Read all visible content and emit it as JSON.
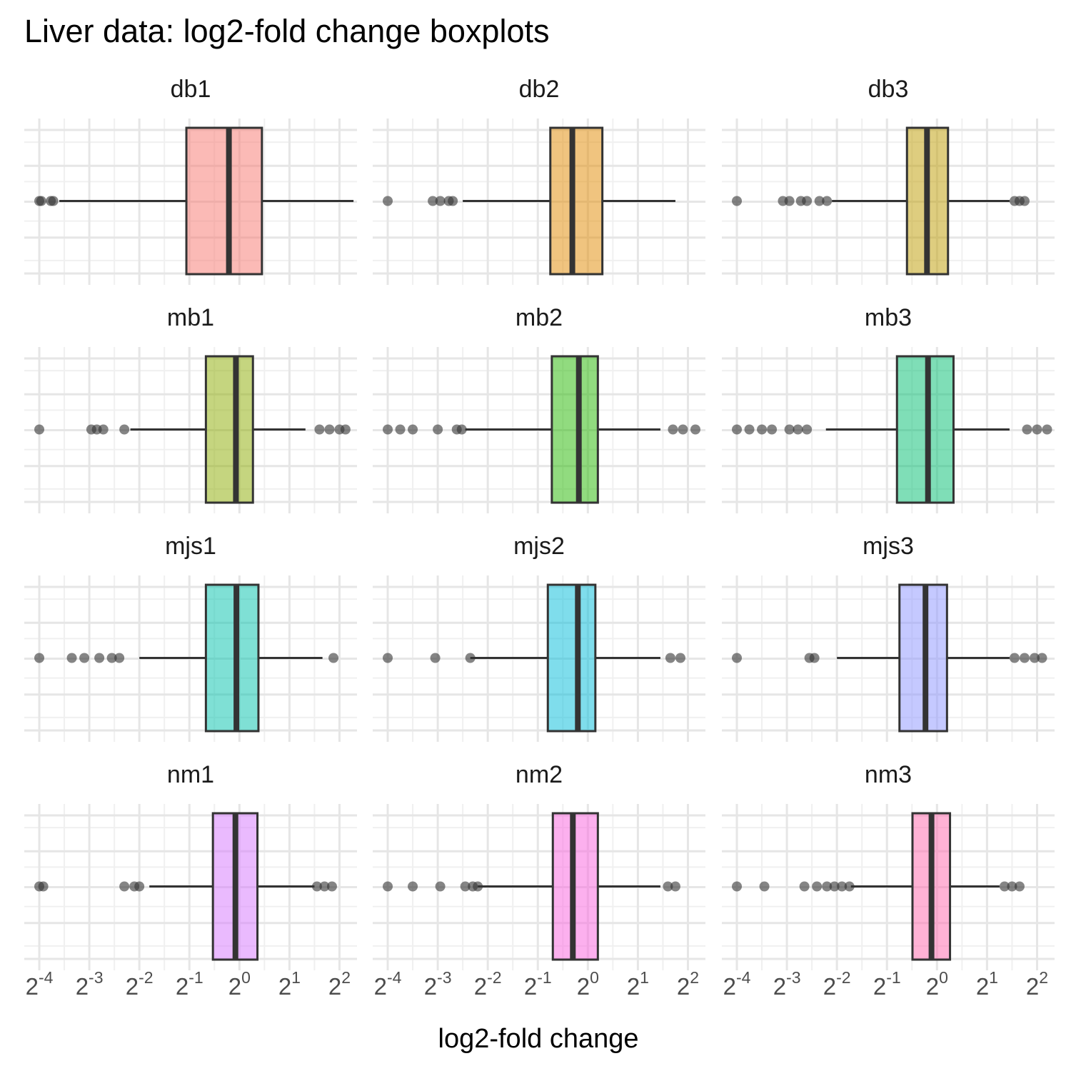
{
  "chart_data": {
    "type": "boxplot",
    "title": "Liver data: log2-fold change boxplots",
    "xlabel": "log2-fold change",
    "ylabel": "",
    "x_scale": "log2",
    "x_tick_base": "2",
    "x_tick_exponents": [
      "-4",
      "-3",
      "-2",
      "-1",
      "0",
      "1",
      "2"
    ],
    "xlim_log2": [
      -4.3,
      2.35
    ],
    "grid": true,
    "legend": "none",
    "layout": {
      "rows": 4,
      "cols": 3
    },
    "panels": [
      {
        "name": "db1",
        "color": "#F8766D",
        "whisker_low": -3.6,
        "q1": -1.06,
        "median": -0.21,
        "q3": 0.45,
        "whisker_high": 2.28,
        "outliers_low": [
          -4.0,
          -3.96,
          -3.77,
          -3.72
        ],
        "outliers_high": []
      },
      {
        "name": "db2",
        "color": "#E18A00",
        "whisker_low": -2.5,
        "q1": -0.75,
        "median": -0.31,
        "q3": 0.29,
        "whisker_high": 1.75,
        "outliers_low": [
          -4.0,
          -3.1,
          -2.95,
          -2.78,
          -2.7
        ],
        "outliers_high": []
      },
      {
        "name": "db3",
        "color": "#BE9C00",
        "whisker_low": -2.1,
        "q1": -0.6,
        "median": -0.2,
        "q3": 0.22,
        "whisker_high": 1.45,
        "outliers_low": [
          -4.0,
          -3.08,
          -2.95,
          -2.72,
          -2.6,
          -2.35,
          -2.2
        ],
        "outliers_high": [
          1.55,
          1.65,
          1.75
        ]
      },
      {
        "name": "mb1",
        "color": "#8CAB00",
        "whisker_low": -2.18,
        "q1": -0.67,
        "median": -0.07,
        "q3": 0.27,
        "whisker_high": 1.32,
        "outliers_low": [
          -4.0,
          -2.96,
          -2.85,
          -2.72,
          -2.3
        ],
        "outliers_high": [
          1.6,
          1.8,
          2.0,
          2.12
        ]
      },
      {
        "name": "mb2",
        "color": "#24B700",
        "whisker_low": -2.45,
        "q1": -0.72,
        "median": -0.18,
        "q3": 0.2,
        "whisker_high": 1.45,
        "outliers_low": [
          -4.0,
          -3.75,
          -3.5,
          -3.0,
          -2.62,
          -2.52
        ],
        "outliers_high": [
          1.7,
          1.9,
          2.15
        ]
      },
      {
        "name": "mb3",
        "color": "#00BE70",
        "whisker_low": -2.22,
        "q1": -0.8,
        "median": -0.18,
        "q3": 0.33,
        "whisker_high": 1.45,
        "outliers_low": [
          -4.0,
          -3.75,
          -3.5,
          -3.3,
          -2.95,
          -2.78,
          -2.6
        ],
        "outliers_high": [
          1.8,
          2.0,
          2.2
        ]
      },
      {
        "name": "mjs1",
        "color": "#00C1AB",
        "whisker_low": -2.0,
        "q1": -0.67,
        "median": -0.06,
        "q3": 0.38,
        "whisker_high": 1.66,
        "outliers_low": [
          -4.0,
          -3.35,
          -3.1,
          -2.8,
          -2.55,
          -2.4
        ],
        "outliers_high": [
          1.88
        ]
      },
      {
        "name": "mjs2",
        "color": "#00BBDA",
        "whisker_low": -2.35,
        "q1": -0.8,
        "median": -0.2,
        "q3": 0.15,
        "whisker_high": 1.45,
        "outliers_low": [
          -4.0,
          -3.05,
          -2.35
        ],
        "outliers_high": [
          1.65,
          1.85
        ]
      },
      {
        "name": "mjs3",
        "color": "#8B93FF",
        "whisker_low": -2.0,
        "q1": -0.75,
        "median": -0.23,
        "q3": 0.2,
        "whisker_high": 1.45,
        "outliers_low": [
          -4.0,
          -2.55,
          -2.45
        ],
        "outliers_high": [
          1.55,
          1.75,
          1.95,
          2.1
        ]
      },
      {
        "name": "nm1",
        "color": "#D575FE",
        "whisker_low": -1.8,
        "q1": -0.53,
        "median": -0.08,
        "q3": 0.36,
        "whisker_high": 1.5,
        "outliers_low": [
          -4.0,
          -3.92,
          -2.3,
          -2.1,
          -2.0
        ],
        "outliers_high": [
          1.55,
          1.7,
          1.85
        ]
      },
      {
        "name": "nm2",
        "color": "#F962DD",
        "whisker_low": -2.2,
        "q1": -0.7,
        "median": -0.3,
        "q3": 0.2,
        "whisker_high": 1.45,
        "outliers_low": [
          -4.0,
          -3.5,
          -2.95,
          -2.45,
          -2.3,
          -2.2
        ],
        "outliers_high": [
          1.6,
          1.75
        ]
      },
      {
        "name": "nm3",
        "color": "#FF65AC",
        "whisker_low": -1.72,
        "q1": -0.49,
        "median": -0.11,
        "q3": 0.26,
        "whisker_high": 1.25,
        "outliers_low": [
          -4.0,
          -3.45,
          -2.65,
          -2.4,
          -2.2,
          -2.05,
          -1.9,
          -1.75
        ],
        "outliers_high": [
          1.35,
          1.5,
          1.65
        ]
      }
    ]
  }
}
